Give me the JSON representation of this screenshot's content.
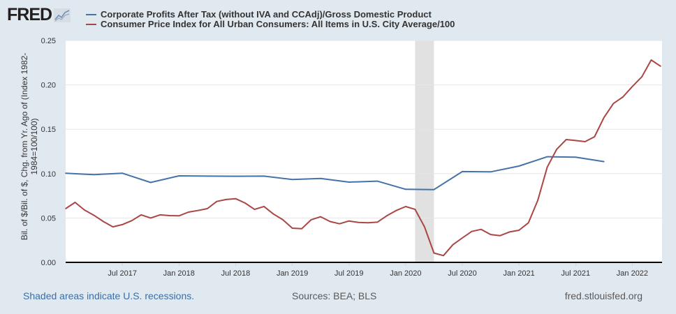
{
  "header": {
    "logo_text": "FRED",
    "legend": [
      {
        "label": "Corporate Profits After Tax (without IVA and CCAdj)/Gross Domestic Product",
        "color": "#4572a7"
      },
      {
        "label": "Consumer Price Index for All Urban Consumers: All Items in U.S. City Average/100",
        "color": "#aa4643"
      }
    ]
  },
  "footer": {
    "recession_note": "Shaded areas indicate U.S. recessions.",
    "sources": "Sources: BEA; BLS",
    "site": "fred.stlouisfed.org"
  },
  "chart_data": {
    "type": "line",
    "title": "",
    "xlabel": "",
    "ylabel_lines": [
      "Bil. of $/Bil. of $, Chg. from Yr. Ago of (Index 1982-",
      "1984=100/100)"
    ],
    "xlim": [
      "2017-01",
      "2022-04"
    ],
    "ylim": [
      0,
      0.25
    ],
    "grid": true,
    "legend_position": "top",
    "y_ticks": [
      "0.00",
      "0.05",
      "0.10",
      "0.15",
      "0.20",
      "0.25"
    ],
    "x_ticks": [
      {
        "date": "2017-07",
        "label": "Jul 2017"
      },
      {
        "date": "2018-01",
        "label": "Jan 2018"
      },
      {
        "date": "2018-07",
        "label": "Jul 2018"
      },
      {
        "date": "2019-01",
        "label": "Jan 2019"
      },
      {
        "date": "2019-07",
        "label": "Jul 2019"
      },
      {
        "date": "2020-01",
        "label": "Jan 2020"
      },
      {
        "date": "2020-07",
        "label": "Jul 2020"
      },
      {
        "date": "2021-01",
        "label": "Jan 2021"
      },
      {
        "date": "2021-07",
        "label": "Jul 2021"
      },
      {
        "date": "2022-01",
        "label": "Jan 2022"
      }
    ],
    "recessions": [
      {
        "start": "2020-02",
        "end": "2020-04",
        "color": "#e1e1e1"
      }
    ],
    "series": [
      {
        "name": "Corporate Profits After Tax (without IVA and CCAdj)/Gross Domestic Product",
        "color": "#4572a7",
        "x": [
          "2017-01",
          "2017-04",
          "2017-07",
          "2017-10",
          "2018-01",
          "2018-04",
          "2018-07",
          "2018-10",
          "2019-01",
          "2019-04",
          "2019-07",
          "2019-10",
          "2020-01",
          "2020-04",
          "2020-07",
          "2020-10",
          "2021-01",
          "2021-04",
          "2021-07",
          "2021-10"
        ],
        "y": [
          0.1005,
          0.0988,
          0.1005,
          0.09,
          0.0975,
          0.0972,
          0.097,
          0.0972,
          0.0933,
          0.0946,
          0.0904,
          0.0915,
          0.0823,
          0.082,
          0.1023,
          0.102,
          0.1085,
          0.119,
          0.1185,
          0.1135
        ]
      },
      {
        "name": "Consumer Price Index for All Urban Consumers: All Items in U.S. City Average/100",
        "color": "#aa4643",
        "x": [
          "2017-01",
          "2017-02",
          "2017-03",
          "2017-04",
          "2017-05",
          "2017-06",
          "2017-07",
          "2017-08",
          "2017-09",
          "2017-10",
          "2017-11",
          "2017-12",
          "2018-01",
          "2018-02",
          "2018-03",
          "2018-04",
          "2018-05",
          "2018-06",
          "2018-07",
          "2018-08",
          "2018-09",
          "2018-10",
          "2018-11",
          "2018-12",
          "2019-01",
          "2019-02",
          "2019-03",
          "2019-04",
          "2019-05",
          "2019-06",
          "2019-07",
          "2019-08",
          "2019-09",
          "2019-10",
          "2019-11",
          "2019-12",
          "2020-01",
          "2020-02",
          "2020-03",
          "2020-04",
          "2020-05",
          "2020-06",
          "2020-07",
          "2020-08",
          "2020-09",
          "2020-10",
          "2020-11",
          "2020-12",
          "2021-01",
          "2021-02",
          "2021-03",
          "2021-04",
          "2021-05",
          "2021-06",
          "2021-07",
          "2021-08",
          "2021-09",
          "2021-10",
          "2021-11",
          "2021-12",
          "2022-01",
          "2022-02",
          "2022-03",
          "2022-04"
        ],
        "y": [
          0.0605,
          0.0676,
          0.059,
          0.053,
          0.046,
          0.04,
          0.0425,
          0.047,
          0.0535,
          0.05,
          0.0535,
          0.0527,
          0.0524,
          0.0566,
          0.0584,
          0.0605,
          0.0686,
          0.0708,
          0.0718,
          0.0668,
          0.0597,
          0.063,
          0.0545,
          0.048,
          0.0385,
          0.038,
          0.048,
          0.0514,
          0.046,
          0.0435,
          0.0466,
          0.045,
          0.0446,
          0.0453,
          0.0524,
          0.0584,
          0.0629,
          0.0597,
          0.04,
          0.0105,
          0.0076,
          0.0199,
          0.0275,
          0.0348,
          0.0372,
          0.0314,
          0.0301,
          0.0343,
          0.0362,
          0.0446,
          0.0702,
          0.1075,
          0.1274,
          0.1384,
          0.1373,
          0.136,
          0.1415,
          0.1633,
          0.179,
          0.1863,
          0.198,
          0.209,
          0.228,
          0.221
        ]
      }
    ]
  }
}
